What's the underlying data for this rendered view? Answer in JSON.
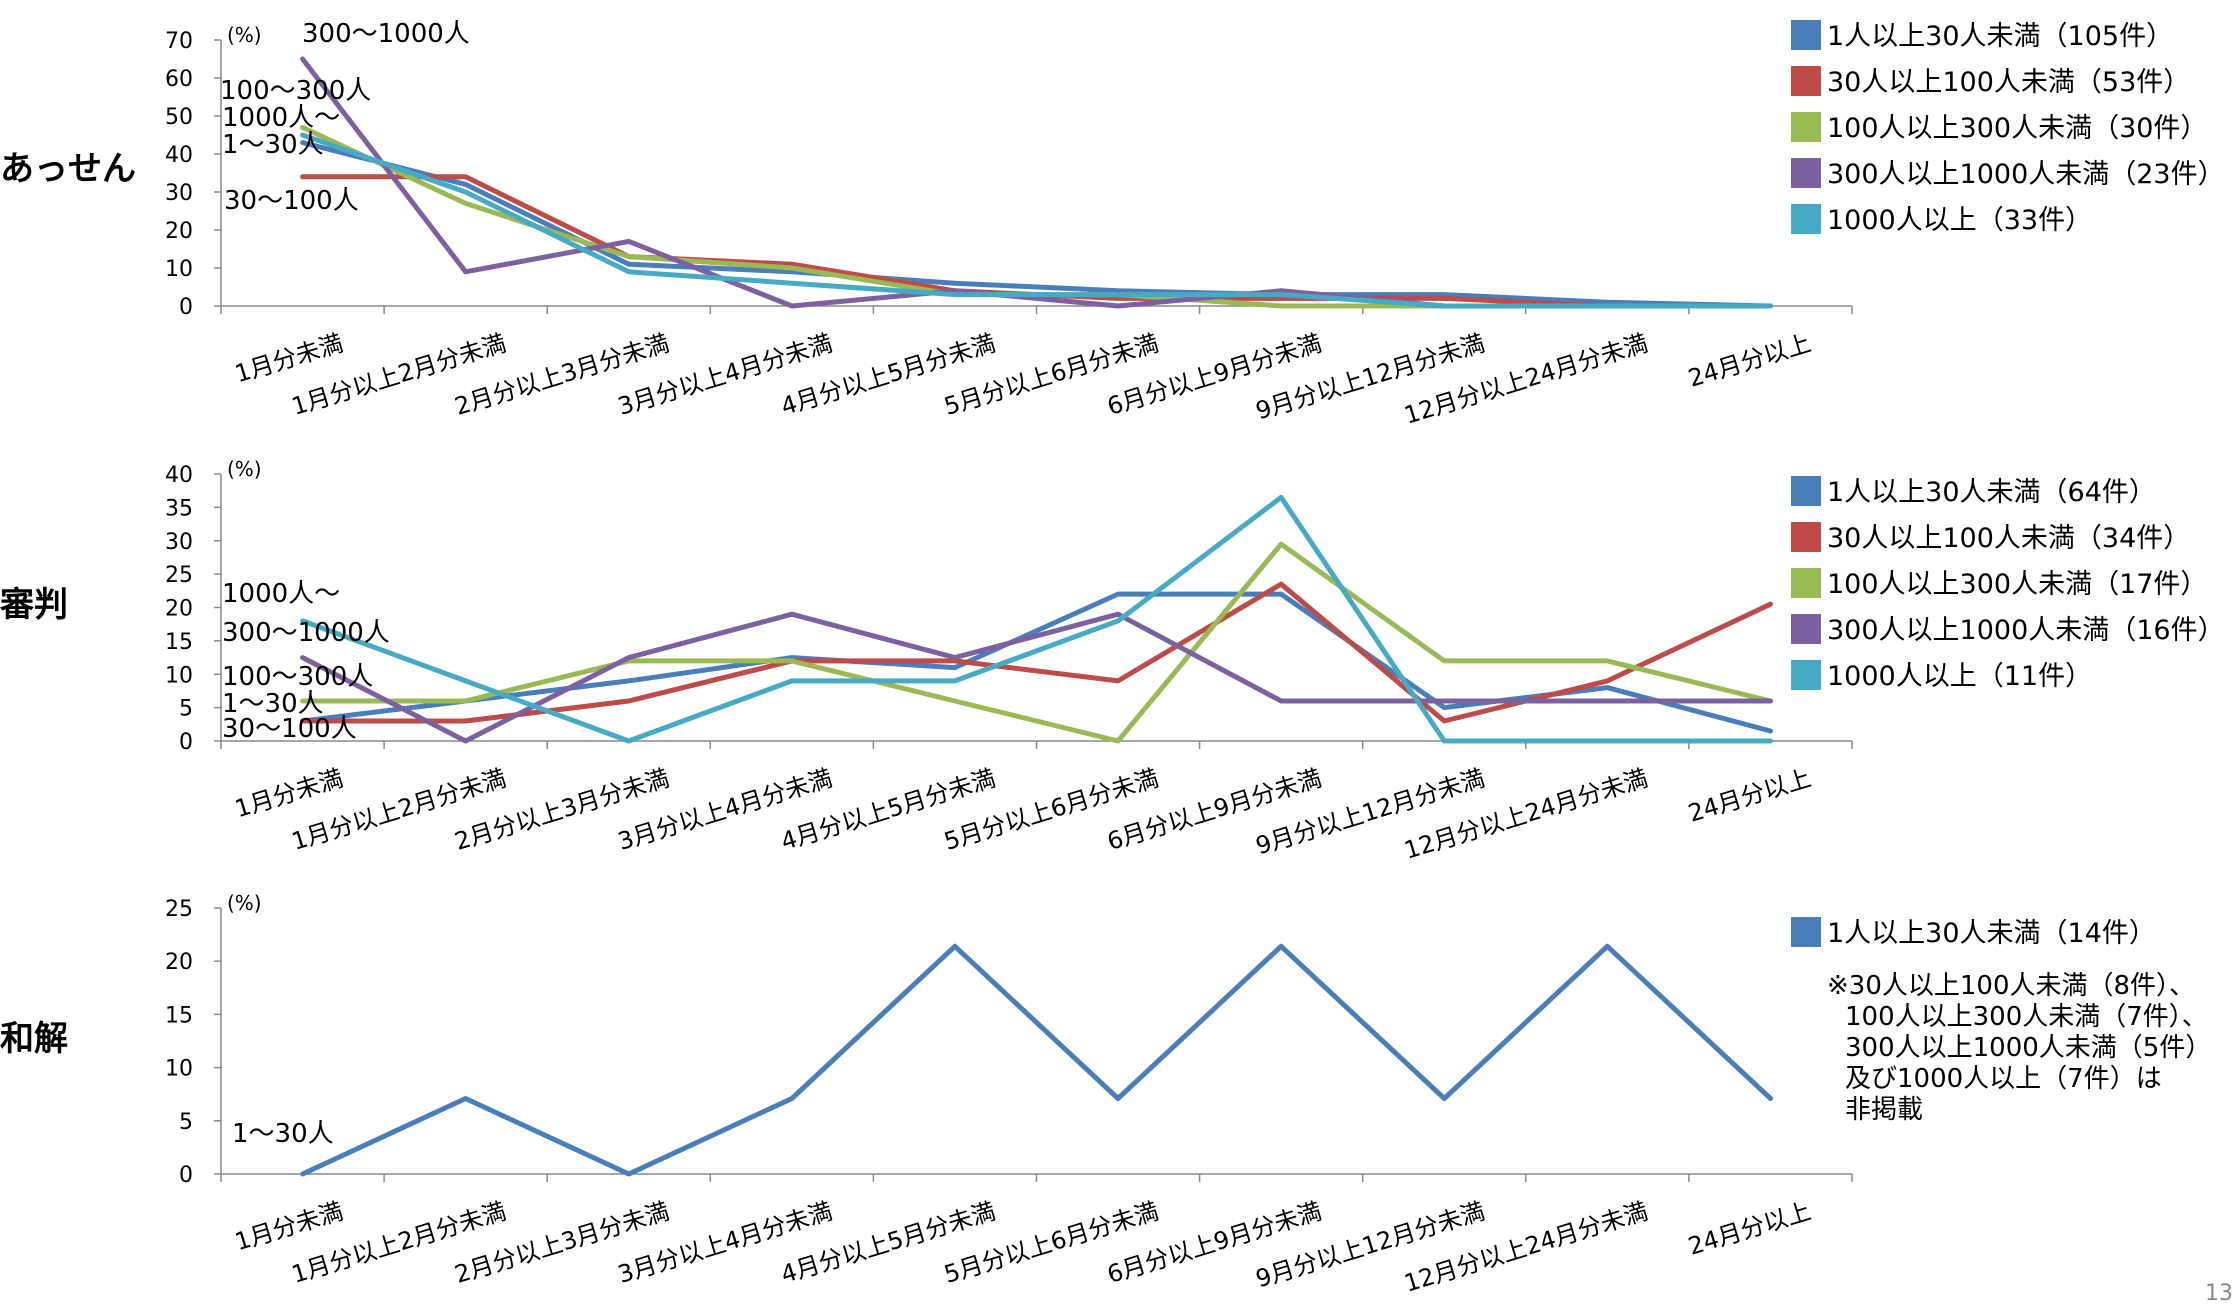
{
  "page_number": "13",
  "chart_data": [
    {
      "type": "line",
      "section_label": "あっせん",
      "unit_label": "(%)",
      "categories": [
        "1月分未満",
        "1月分以上2月分未満",
        "2月分以上3月分未満",
        "3月分以上4月分未満",
        "4月分以上5月分未満",
        "5月分以上6月分未満",
        "6月分以上9月分未満",
        "9月分以上12月分未満",
        "12月分以上24月分未満",
        "24月分以上"
      ],
      "ylim": [
        0,
        70
      ],
      "yticks": [
        0,
        10,
        20,
        30,
        40,
        50,
        60,
        70
      ],
      "series": [
        {
          "name": "1人以上30人未満（105件）",
          "color": "#4a7ebb",
          "values": [
            43,
            32,
            11,
            9,
            6,
            4,
            3,
            3,
            1,
            0
          ]
        },
        {
          "name": "30人以上100人未満（53件）",
          "color": "#be4b48",
          "values": [
            34,
            34,
            13,
            11,
            4,
            2,
            2,
            2,
            0,
            0
          ]
        },
        {
          "name": "100人以上300人未満（30件）",
          "color": "#98b954",
          "values": [
            47,
            27,
            13,
            10,
            3,
            3,
            0,
            0,
            0,
            0
          ]
        },
        {
          "name": "300人以上1000人未満（23件）",
          "color": "#7d60a0",
          "values": [
            65,
            9,
            17,
            0,
            4,
            0,
            4,
            0,
            0,
            0
          ]
        },
        {
          "name": "1000人以上（33件）",
          "color": "#46aac5",
          "values": [
            45,
            30,
            9,
            6,
            3,
            3,
            3,
            0,
            0,
            0
          ]
        }
      ],
      "annotations": [
        {
          "text": "300〜1000人"
        },
        {
          "text": "100〜300人"
        },
        {
          "text": "1000人〜"
        },
        {
          "text": "1〜30人"
        },
        {
          "text": "30〜100人"
        }
      ]
    },
    {
      "type": "line",
      "section_label": "審判",
      "unit_label": "(%)",
      "categories": [
        "1月分未満",
        "1月分以上2月分未満",
        "2月分以上3月分未満",
        "3月分以上4月分未満",
        "4月分以上5月分未満",
        "5月分以上6月分未満",
        "6月分以上9月分未満",
        "9月分以上12月分未満",
        "12月分以上24月分未満",
        "24月分以上"
      ],
      "ylim": [
        0,
        40
      ],
      "yticks": [
        0,
        5,
        10,
        15,
        20,
        25,
        30,
        35,
        40
      ],
      "series": [
        {
          "name": "1人以上30人未満（64件）",
          "color": "#4a7ebb",
          "values": [
            3,
            6,
            9,
            12.5,
            11,
            22,
            22,
            5,
            8,
            1.5
          ]
        },
        {
          "name": "30人以上100人未満（34件）",
          "color": "#be4b48",
          "values": [
            3,
            3,
            6,
            12,
            12,
            9,
            23.5,
            3,
            9,
            20.5
          ]
        },
        {
          "name": "100人以上300人未満（17件）",
          "color": "#98b954",
          "values": [
            6,
            6,
            12,
            12,
            6,
            0,
            29.5,
            12,
            12,
            6
          ]
        },
        {
          "name": "300人以上1000人未満（16件）",
          "color": "#7d60a0",
          "values": [
            12.5,
            0,
            12.5,
            19,
            12.5,
            19,
            6,
            6,
            6,
            6
          ]
        },
        {
          "name": "1000人以上（11件）",
          "color": "#46aac5",
          "values": [
            18,
            9,
            0,
            9,
            9,
            18,
            36.5,
            0,
            0,
            0
          ]
        }
      ],
      "annotations": [
        {
          "text": "1000人〜"
        },
        {
          "text": "300〜1000人"
        },
        {
          "text": "100〜300人"
        },
        {
          "text": "1〜30人"
        },
        {
          "text": "30〜100人"
        }
      ]
    },
    {
      "type": "line",
      "section_label": "和解",
      "unit_label": "(%)",
      "categories": [
        "1月分未満",
        "1月分以上2月分未満",
        "2月分以上3月分未満",
        "3月分以上4月分未満",
        "4月分以上5月分未満",
        "5月分以上6月分未満",
        "6月分以上9月分未満",
        "9月分以上12月分未満",
        "12月分以上24月分未満",
        "24月分以上"
      ],
      "ylim": [
        0,
        25
      ],
      "yticks": [
        0,
        5,
        10,
        15,
        20,
        25
      ],
      "series": [
        {
          "name": "1人以上30人未満（14件）",
          "color": "#4a7ebb",
          "values": [
            0,
            7.1,
            0,
            7.1,
            21.4,
            7.1,
            21.4,
            7.1,
            21.4,
            7.1
          ]
        }
      ],
      "annotations": [
        {
          "text": "1〜30人"
        }
      ],
      "note_lines": [
        "※30人以上100人未満（8件）、",
        "100人以上300人未満（7件）、",
        "300人以上1000人未満（5件）",
        "及び1000人以上（7件）は",
        "非掲載"
      ]
    }
  ]
}
